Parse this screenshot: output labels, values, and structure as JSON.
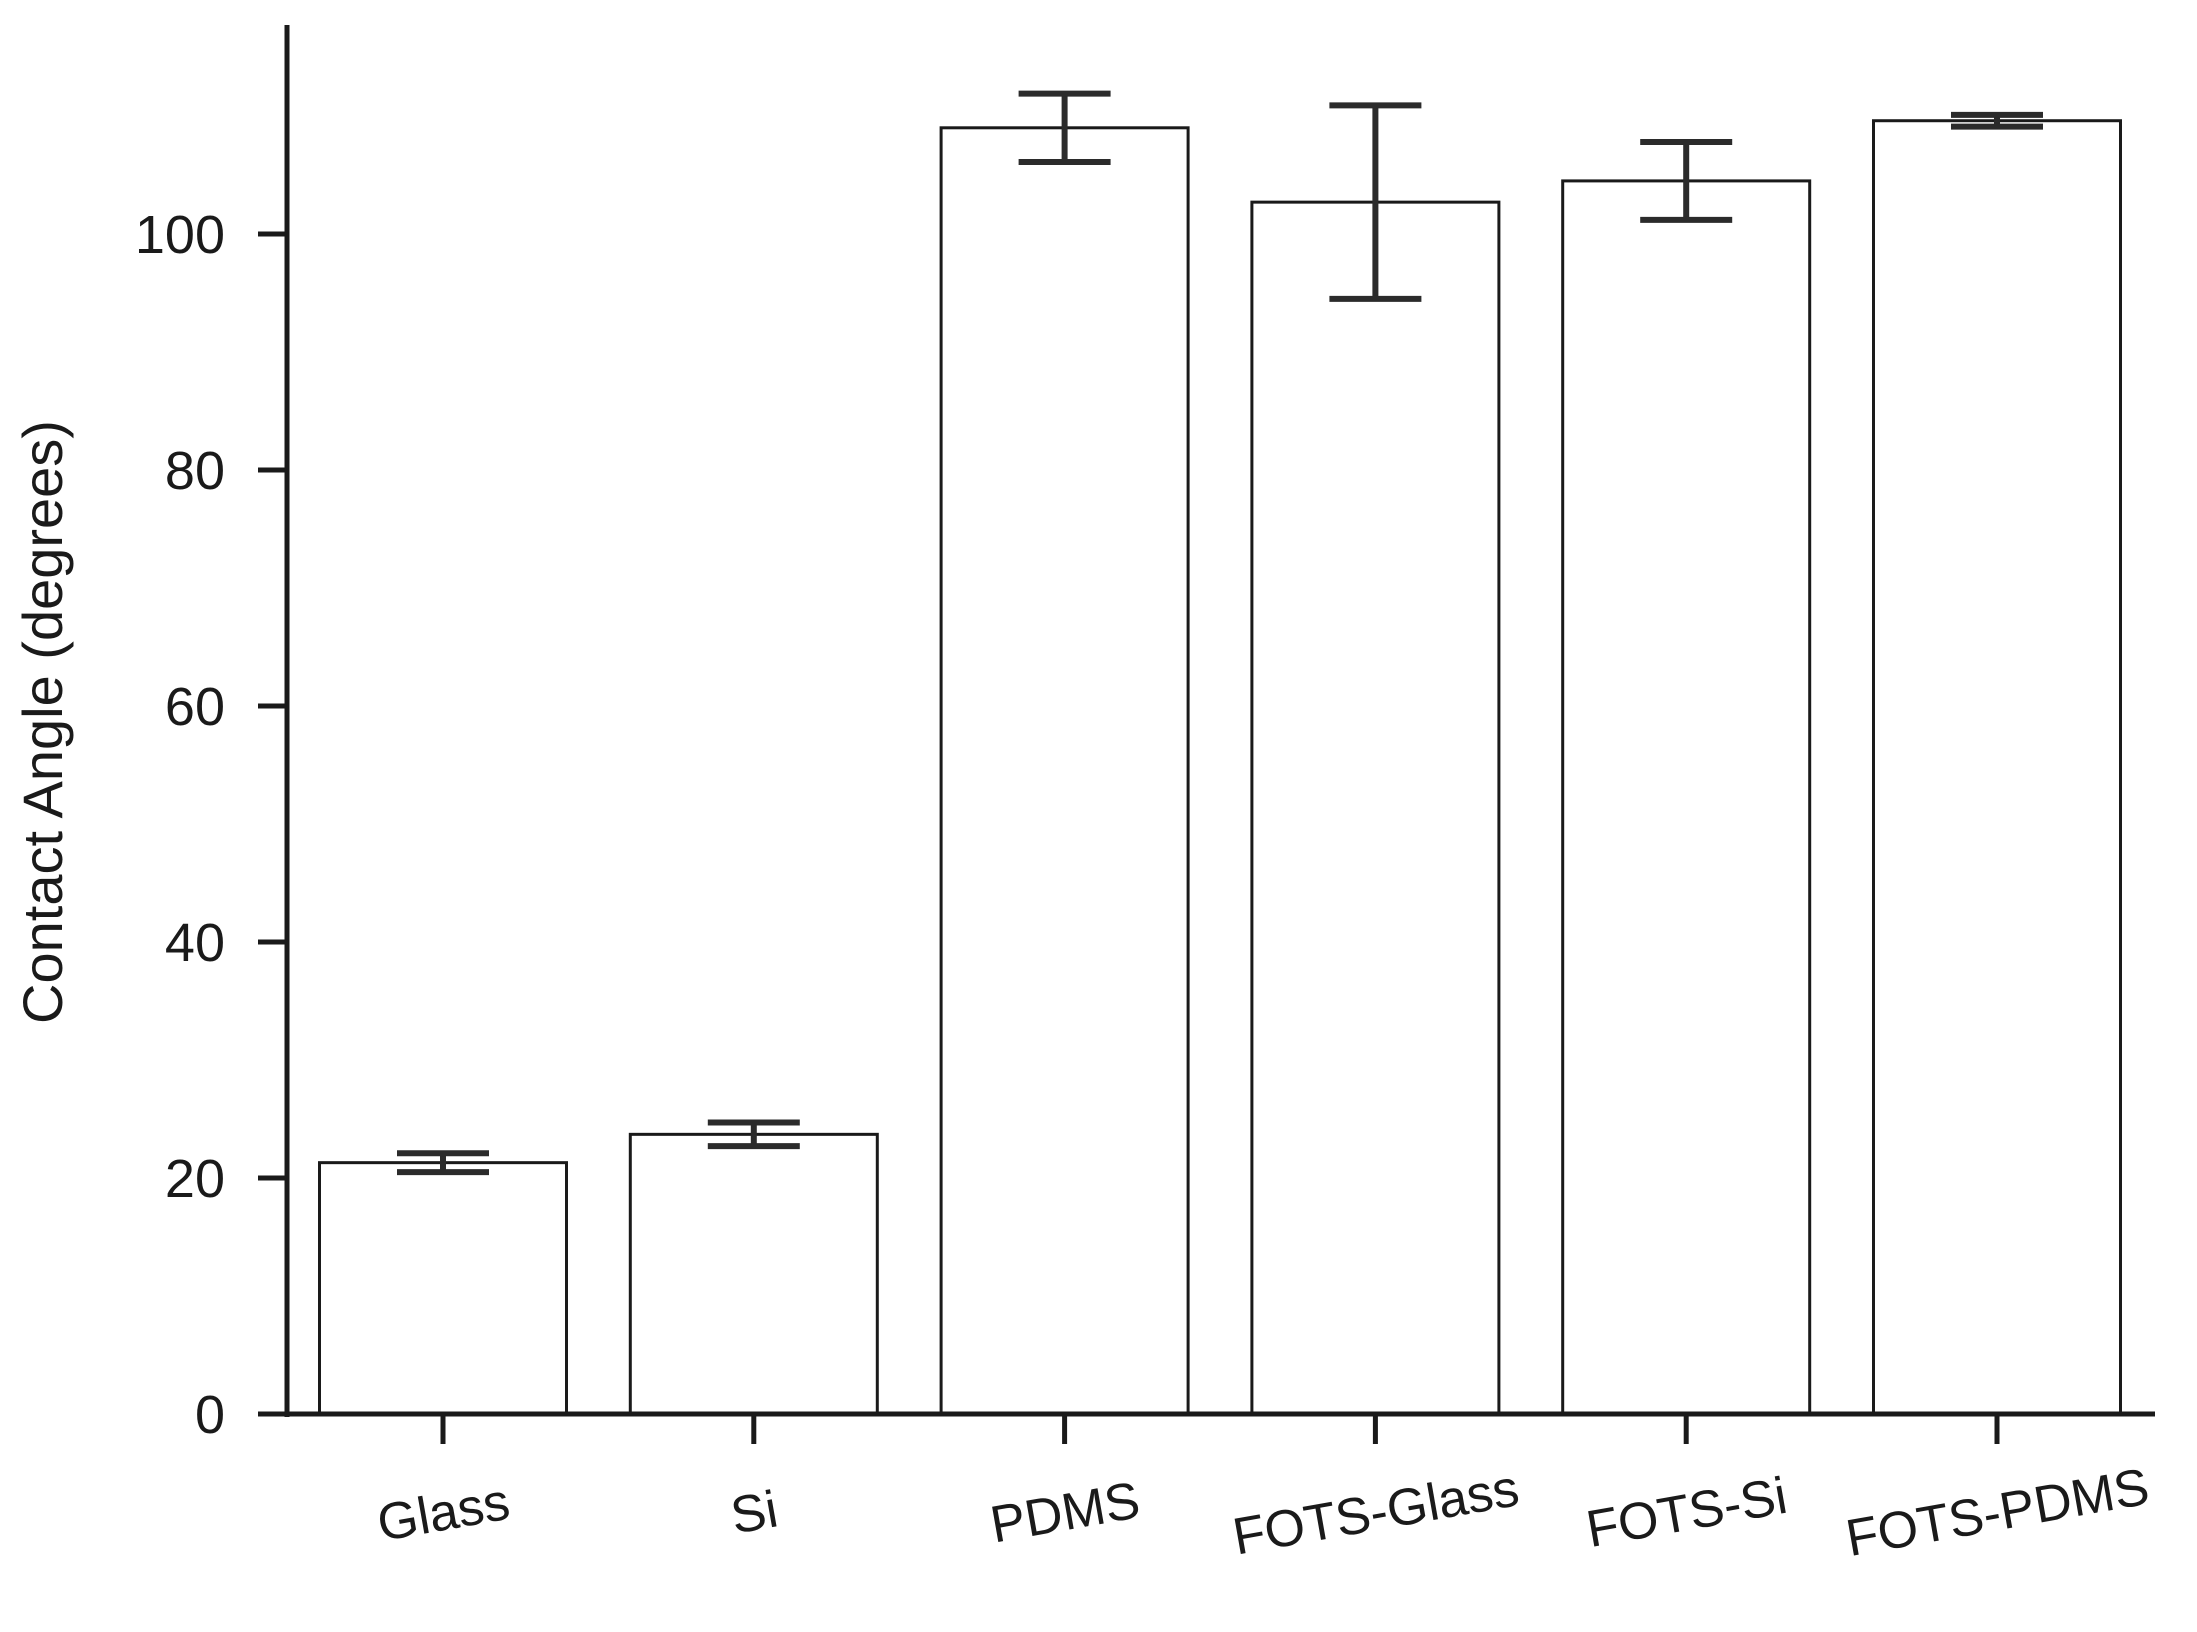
{
  "chart_data": {
    "type": "bar",
    "title": "",
    "xlabel": "",
    "ylabel": "Contact Angle (degrees)",
    "ylim": [
      0,
      118
    ],
    "yticks": [
      0,
      20,
      40,
      60,
      80,
      100
    ],
    "grid": false,
    "categories": [
      "Glass",
      "Si",
      "PDMS",
      "FOTS-Glass",
      "FOTS-Si",
      "FOTS-PDMS"
    ],
    "series": [
      {
        "values": [
          21.3,
          23.7,
          109.0,
          102.7,
          104.5,
          109.6
        ],
        "error": [
          0.8,
          1.0,
          2.9,
          8.2,
          3.3,
          0.5
        ]
      }
    ],
    "bar_fill": "#ffffff",
    "bar_stroke": "#1a1a1a"
  }
}
